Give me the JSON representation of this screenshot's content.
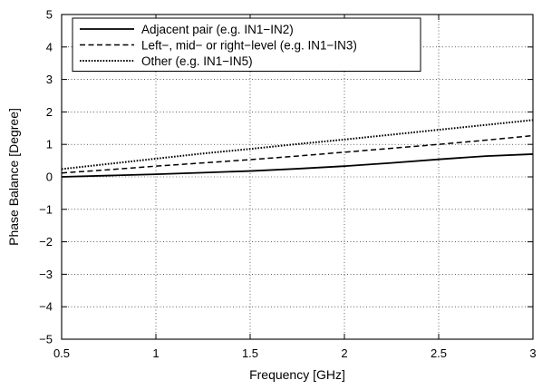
{
  "chart_data": {
    "type": "line",
    "title": "",
    "xlabel": "Frequency [GHz]",
    "ylabel": "Phase Balance [Degree]",
    "xlim": [
      0.5,
      3
    ],
    "ylim": [
      -5,
      5
    ],
    "xticks": [
      0.5,
      1,
      1.5,
      2,
      2.5,
      3
    ],
    "xtick_labels": [
      "0.5",
      "1",
      "1.5",
      "2",
      "2.5",
      "3"
    ],
    "yticks": [
      -5,
      -4,
      -3,
      -2,
      -1,
      0,
      1,
      2,
      3,
      4,
      5
    ],
    "ytick_labels": [
      "−5",
      "−4",
      "−3",
      "−2",
      "−1",
      "0",
      "1",
      "2",
      "3",
      "4",
      "5"
    ],
    "grid": true,
    "legend_position": "top",
    "series": [
      {
        "name": "Adjacent pair (e.g. IN1−IN2)",
        "style": "solid",
        "x": [
          0.5,
          0.75,
          1.0,
          1.25,
          1.5,
          1.75,
          2.0,
          2.25,
          2.5,
          2.75,
          3.0
        ],
        "y": [
          0.0,
          0.04,
          0.08,
          0.13,
          0.18,
          0.25,
          0.33,
          0.43,
          0.54,
          0.64,
          0.7
        ]
      },
      {
        "name": "Left−, mid− or right−level (e.g. IN1−IN3)",
        "style": "dashed",
        "x": [
          0.5,
          0.75,
          1.0,
          1.25,
          1.5,
          1.75,
          2.0,
          2.25,
          2.5,
          2.75,
          3.0
        ],
        "y": [
          0.12,
          0.22,
          0.33,
          0.43,
          0.53,
          0.64,
          0.76,
          0.88,
          1.0,
          1.13,
          1.27
        ]
      },
      {
        "name": "Other (e.g. IN1−IN5)",
        "style": "dotted",
        "x": [
          0.5,
          0.75,
          1.0,
          1.25,
          1.5,
          1.75,
          2.0,
          2.25,
          2.5,
          2.75,
          3.0
        ],
        "y": [
          0.24,
          0.4,
          0.56,
          0.72,
          0.86,
          1.01,
          1.15,
          1.3,
          1.45,
          1.6,
          1.75
        ]
      }
    ]
  }
}
